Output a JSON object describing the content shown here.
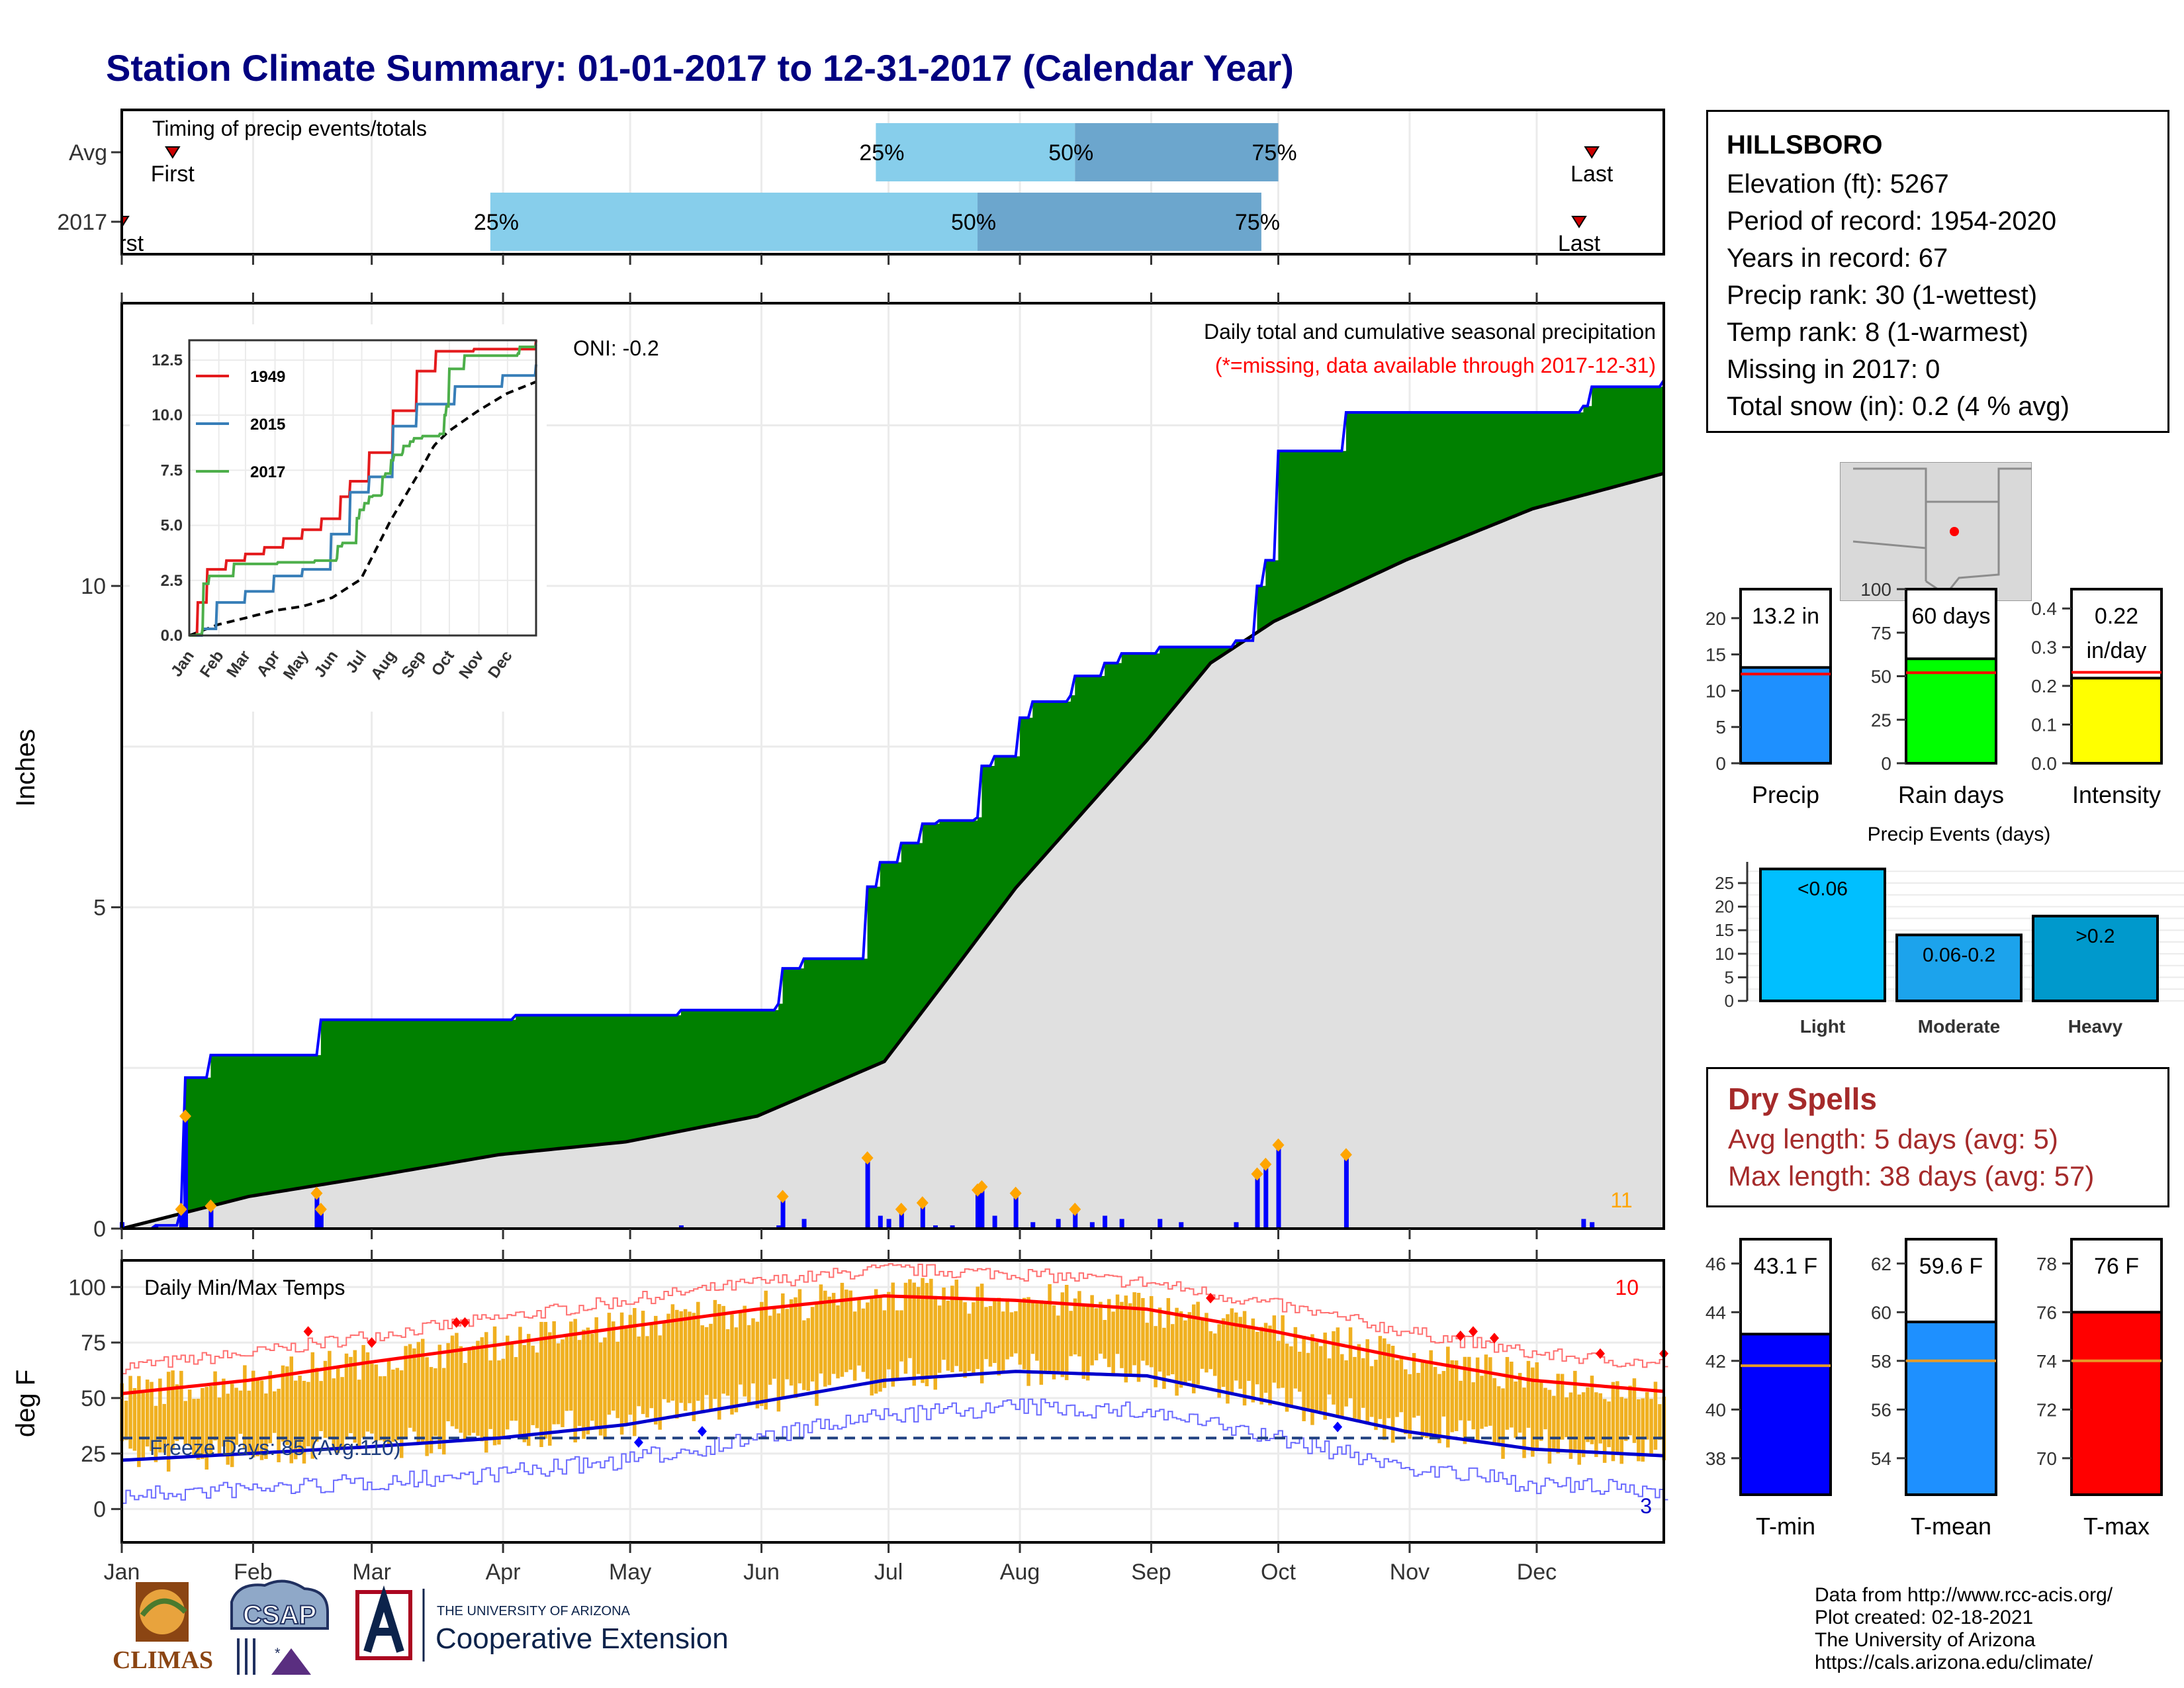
{
  "title": "Station Climate Summary: 01-01-2017 to 12-31-2017 (Calendar Year)",
  "colors": {
    "title": "#000080",
    "green": "#008000",
    "blue": "#0000FF",
    "gray": "#E0E0E0",
    "orange_bar": "#F0B020",
    "light_blue": "#87CEEB",
    "mid_blue": "#6CA6CD",
    "dry_red": "#A52A2A"
  },
  "timing": {
    "label": "Timing of precip events/totals",
    "rows": [
      {
        "label": "Avg",
        "first_label": "First",
        "last_label": "Last",
        "p25": "25%",
        "p50": "50%",
        "p75": "75%",
        "first_day": 13,
        "last_day": 348,
        "p25_day": 179,
        "p50_day": 226,
        "p75_day": 274
      },
      {
        "label": "2017",
        "first_label": "First",
        "last_label": "Last",
        "p25": "25%",
        "p50": "50%",
        "p75": "75%",
        "first_day": 1,
        "last_day": 345,
        "p25_day": 88,
        "p50_day": 203,
        "p75_day": 270
      }
    ]
  },
  "station": {
    "name": "HILLSBORO",
    "lines": [
      "Elevation (ft): 5267",
      "Period of record: 1954-2020",
      "Years in record: 67",
      "Precip rank: 30 (1-wettest)",
      "Temp rank: 8 (1-warmest)",
      "Missing in 2017: 0",
      "Total snow (in): 0.2 (4 % avg)"
    ]
  },
  "precip_panel": {
    "ylabel": "Inches",
    "header1": "Daily total and cumulative seasonal precipitation",
    "header2": "(*=missing, data available through 2017-12-31)",
    "oni": "ONI: -0.2",
    "count_label": "11",
    "y_ticks": [
      "0",
      "5",
      "10"
    ],
    "inset": {
      "legend": [
        "1949",
        "2015",
        "2017"
      ],
      "y_ticks": [
        "0.0",
        "2.5",
        "5.0",
        "7.5",
        "10.0",
        "12.5"
      ],
      "x_ticks": [
        "Jan",
        "Feb",
        "Mar",
        "Apr",
        "May",
        "Jun",
        "Jul",
        "Aug",
        "Sep",
        "Oct",
        "Nov",
        "Dec"
      ]
    }
  },
  "temp_panel": {
    "ylabel": "deg F",
    "label": "Daily Min/Max Temps",
    "freeze_label": "Freeze Days: 85 (Avg:110)",
    "count_max": "10",
    "count_min": "3",
    "y_ticks": [
      "0",
      "25",
      "50",
      "75",
      "100"
    ],
    "x_ticks": [
      "Jan",
      "Feb",
      "Mar",
      "Apr",
      "May",
      "Jun",
      "Jul",
      "Aug",
      "Sep",
      "Oct",
      "Nov",
      "Dec"
    ]
  },
  "gauges_top": [
    {
      "label": "Precip",
      "value_text": "13.2 in",
      "value": 13.2,
      "avg": 12.3,
      "max": 24,
      "ticks": [
        "0",
        "5",
        "10",
        "15",
        "20"
      ],
      "tick_values": [
        0,
        5,
        10,
        15,
        20
      ],
      "color": "#1E90FF"
    },
    {
      "label": "Rain days",
      "value_text": "60 days",
      "value": 60,
      "avg": 52,
      "max": 100,
      "ticks": [
        "0",
        "25",
        "50",
        "75",
        "100"
      ],
      "tick_values": [
        0,
        25,
        50,
        75,
        100
      ],
      "color": "#00FF00"
    },
    {
      "label": "Intensity",
      "value_text": "0.22",
      "value_text2": "in/day",
      "value": 0.22,
      "avg": 0.235,
      "max": 0.45,
      "ticks": [
        "0.0",
        "0.1",
        "0.2",
        "0.3",
        "0.4"
      ],
      "tick_values": [
        0,
        0.1,
        0.2,
        0.3,
        0.4
      ],
      "color": "#FFFF00"
    }
  ],
  "precip_events": {
    "title": "Precip Events (days)",
    "y_ticks": [
      "0",
      "5",
      "10",
      "15",
      "20",
      "25"
    ],
    "bars": [
      {
        "label": "Light",
        "inner": "<0.06",
        "value": 28,
        "color": "#00BFFF"
      },
      {
        "label": "Moderate",
        "inner": "0.06-0.2",
        "value": 14,
        "color": "#1CA3EC"
      },
      {
        "label": "Heavy",
        "inner": ">0.2",
        "value": 18,
        "color": "#0099CC"
      }
    ]
  },
  "dry_spells": {
    "title": "Dry Spells",
    "avg": "Avg length: 5 days (avg: 5)",
    "max": "Max length: 38 days (avg: 57)"
  },
  "gauges_temp": [
    {
      "label": "T-min",
      "value_text": "43.1 F",
      "value": 43.1,
      "avg": 41.8,
      "min": 36.5,
      "max": 47,
      "ticks": [
        "38",
        "40",
        "42",
        "44",
        "46"
      ],
      "tick_values": [
        38,
        40,
        42,
        44,
        46
      ],
      "color": "#0000FF"
    },
    {
      "label": "T-mean",
      "value_text": "59.6 F",
      "value": 59.6,
      "avg": 58,
      "min": 52.5,
      "max": 63,
      "ticks": [
        "54",
        "56",
        "58",
        "60",
        "62"
      ],
      "tick_values": [
        54,
        56,
        58,
        60,
        62
      ],
      "color": "#1E90FF"
    },
    {
      "label": "T-max",
      "value_text": "76 F",
      "value": 76,
      "avg": 74,
      "min": 68.5,
      "max": 79,
      "ticks": [
        "70",
        "72",
        "74",
        "76",
        "78"
      ],
      "tick_values": [
        70,
        72,
        74,
        76,
        78
      ],
      "color": "#FF0000"
    }
  ],
  "footer": {
    "lines": [
      "Data from http://www.rcc-acis.org/",
      "Plot created: 02-18-2021",
      "The University of Arizona",
      "https://cals.arizona.edu/climate/"
    ],
    "logos": {
      "climas": "CLIMAS",
      "csap": "CSAP",
      "ua_small": "THE UNIVERSITY OF ARIZONA",
      "ua_big": "Cooperative Extension"
    }
  },
  "chart_data": [
    {
      "type": "line",
      "title": "Daily total and cumulative seasonal precipitation",
      "ylabel": "Inches",
      "ylim": [
        0,
        13.2
      ],
      "series": [
        {
          "name": "2017",
          "points": [
            [
              1,
              0
            ],
            [
              9,
              0.05
            ],
            [
              15,
              0.3
            ],
            [
              16,
              2.35
            ],
            [
              22,
              2.7
            ],
            [
              47,
              2.7
            ],
            [
              48,
              3.25
            ],
            [
              94,
              3.32
            ],
            [
              133,
              3.4
            ],
            [
              156,
              3.5
            ],
            [
              157,
              4.05
            ],
            [
              162,
              4.2
            ],
            [
              176,
              4.2
            ],
            [
              177,
              5.32
            ],
            [
              180,
              5.7
            ],
            [
              185,
              6.0
            ],
            [
              190,
              6.3
            ],
            [
              194,
              6.35
            ],
            [
              203,
              6.4
            ],
            [
              204,
              7.2
            ],
            [
              207,
              7.35
            ],
            [
              212,
              7.35
            ],
            [
              213,
              7.95
            ],
            [
              216,
              8.2
            ],
            [
              225,
              8.3
            ],
            [
              226,
              8.6
            ],
            [
              233,
              8.8
            ],
            [
              237,
              8.95
            ],
            [
              246,
              9.05
            ],
            [
              264,
              9.15
            ],
            [
              269,
              10.0
            ],
            [
              271,
              10.4
            ],
            [
              274,
              12.1
            ],
            [
              290,
              12.7
            ],
            [
              346,
              12.8
            ],
            [
              348,
              13.1
            ],
            [
              365,
              13.2
            ]
          ]
        },
        {
          "name": "",
          "points": [
            [
              1,
              0
            ],
            [
              31,
              0.5
            ],
            [
              59,
              0.8
            ],
            [
              90,
              1.15
            ],
            [
              120,
              1.35
            ],
            [
              151,
              1.75
            ],
            [
              181,
              2.6
            ],
            [
              196,
              3.9
            ],
            [
              212,
              5.3
            ],
            [
              243,
              7.6
            ],
            [
              258,
              8.8
            ],
            [
              273,
              9.45
            ],
            [
              304,
              10.4
            ],
            [
              334,
              11.2
            ],
            [
              365,
              11.75
            ]
          ]
        }
      ],
      "daily": [
        [
          1,
          0.1
        ],
        [
          9,
          0.05
        ],
        [
          15,
          0.3
        ],
        [
          16,
          1.75
        ],
        [
          22,
          0.35
        ],
        [
          47,
          0.55
        ],
        [
          48,
          0.3
        ],
        [
          94,
          0.02
        ],
        [
          133,
          0.05
        ],
        [
          156,
          0.05
        ],
        [
          157,
          0.5
        ],
        [
          162,
          0.15
        ],
        [
          177,
          1.1
        ],
        [
          180,
          0.2
        ],
        [
          182,
          0.15
        ],
        [
          185,
          0.3
        ],
        [
          190,
          0.4
        ],
        [
          193,
          0.05
        ],
        [
          197,
          0.05
        ],
        [
          203,
          0.6
        ],
        [
          204,
          0.65
        ],
        [
          207,
          0.2
        ],
        [
          212,
          0.55
        ],
        [
          216,
          0.1
        ],
        [
          222,
          0.15
        ],
        [
          226,
          0.3
        ],
        [
          230,
          0.1
        ],
        [
          233,
          0.2
        ],
        [
          237,
          0.15
        ],
        [
          246,
          0.15
        ],
        [
          251,
          0.1
        ],
        [
          264,
          0.1
        ],
        [
          269,
          0.85
        ],
        [
          271,
          1.0
        ],
        [
          274,
          1.3
        ],
        [
          290,
          1.15
        ],
        [
          346,
          0.15
        ],
        [
          348,
          0.1
        ]
      ]
    },
    {
      "type": "line",
      "title": "Daily Min/Max Temps",
      "ylabel": "deg F",
      "ylim": [
        -15,
        105
      ],
      "series": [
        {
          "name": "",
          "points": [
            [
              1,
              52
            ],
            [
              31,
              58
            ],
            [
              59,
              66
            ],
            [
              90,
              74
            ],
            [
              120,
              82
            ],
            [
              151,
              90
            ],
            [
              181,
              96
            ],
            [
              212,
              94
            ],
            [
              243,
              90
            ],
            [
              273,
              80
            ],
            [
              304,
              68
            ],
            [
              334,
              58
            ],
            [
              365,
              53
            ]
          ]
        },
        {
          "name": "",
          "points": [
            [
              1,
              22
            ],
            [
              31,
              25
            ],
            [
              59,
              28
            ],
            [
              90,
              32
            ],
            [
              120,
              38
            ],
            [
              151,
              48
            ],
            [
              181,
              58
            ],
            [
              212,
              62
            ],
            [
              243,
              60
            ],
            [
              273,
              48
            ],
            [
              304,
              35
            ],
            [
              334,
              27
            ],
            [
              365,
              24
            ]
          ]
        }
      ]
    }
  ]
}
